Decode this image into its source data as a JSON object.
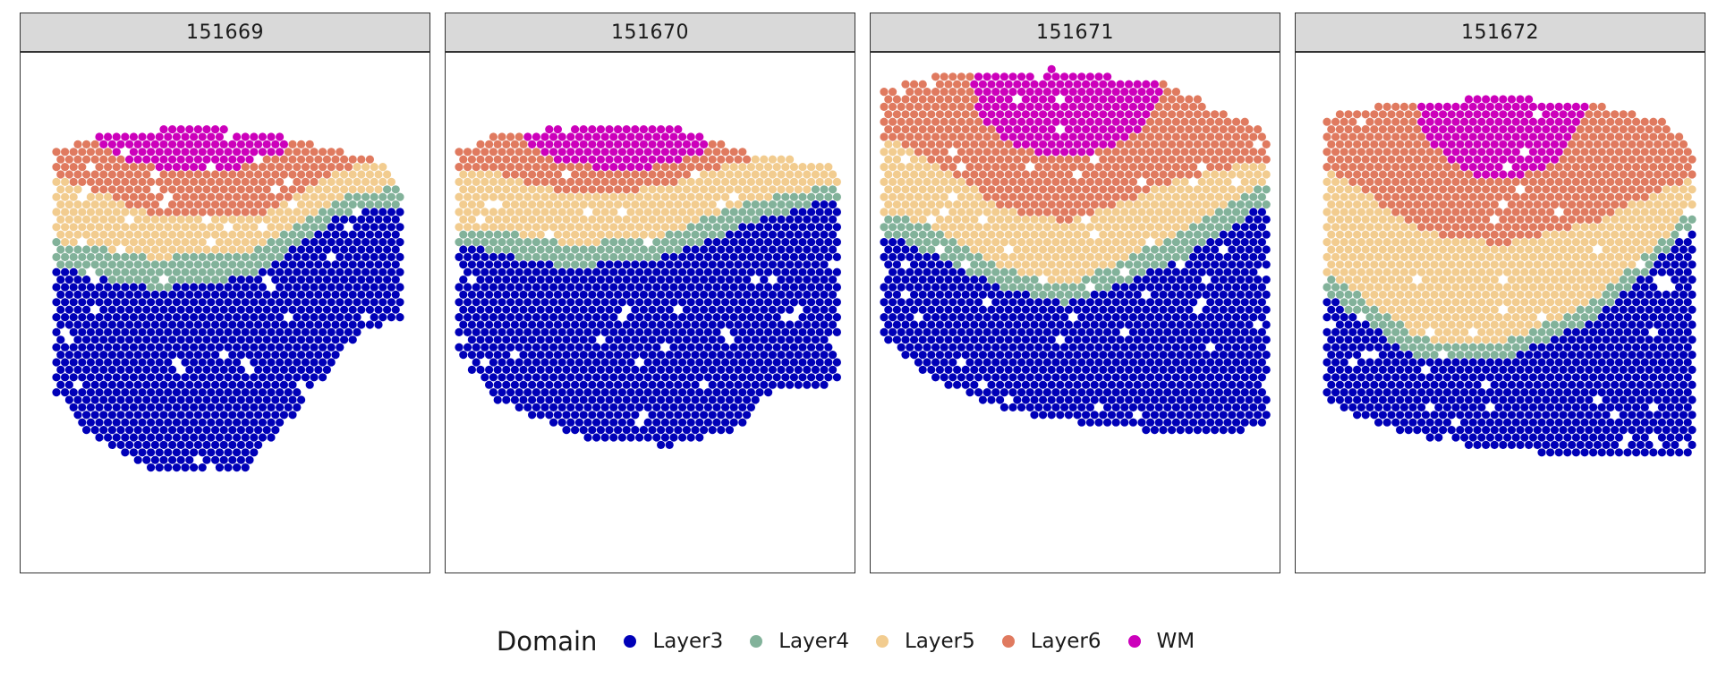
{
  "chart_data": {
    "type": "scatter",
    "legend": {
      "title": "Domain",
      "placement": "bottom",
      "entries": [
        {
          "label": "Layer3",
          "color": "#0000b8"
        },
        {
          "label": "Layer4",
          "color": "#82b29a"
        },
        {
          "label": "Layer5",
          "color": "#f2cc8f"
        },
        {
          "label": "Layer6",
          "color": "#e07a5f"
        },
        {
          "label": "WM",
          "color": "#cc00bb"
        }
      ]
    },
    "panels": [
      {
        "title": "151669"
      },
      {
        "title": "151670"
      },
      {
        "title": "151671"
      },
      {
        "title": "151672"
      }
    ]
  }
}
